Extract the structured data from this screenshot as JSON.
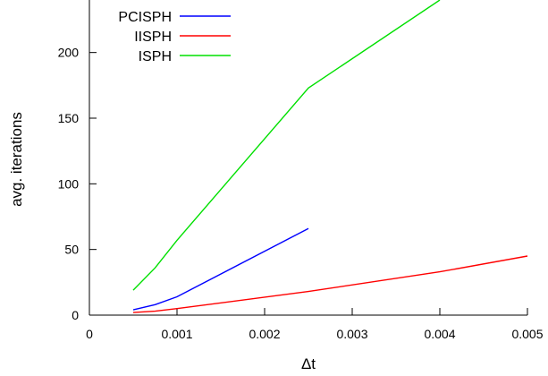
{
  "chart_data": {
    "type": "line",
    "xlabel": "Δt",
    "ylabel": "avg. iterations",
    "xlim": [
      0,
      0.005
    ],
    "ylim": [
      0,
      240
    ],
    "x_ticks": [
      "0",
      "0.001",
      "0.002",
      "0.003",
      "0.004",
      "0.005"
    ],
    "y_ticks": [
      "0",
      "50",
      "100",
      "150",
      "200"
    ],
    "grid": false,
    "legend_position": "top-left",
    "series": [
      {
        "name": "PCISPH",
        "color": "#0000ff",
        "points": [
          [
            0.0005,
            4
          ],
          [
            0.00075,
            8
          ],
          [
            0.001,
            14
          ],
          [
            0.0025,
            66
          ]
        ]
      },
      {
        "name": "IISPH",
        "color": "#ff0000",
        "points": [
          [
            0.0005,
            2
          ],
          [
            0.00075,
            3
          ],
          [
            0.001,
            5
          ],
          [
            0.0025,
            18
          ],
          [
            0.004,
            33
          ],
          [
            0.005,
            45
          ]
        ]
      },
      {
        "name": "ISPH",
        "color": "#00e000",
        "points": [
          [
            0.0005,
            19
          ],
          [
            0.00075,
            36
          ],
          [
            0.001,
            57
          ],
          [
            0.0025,
            173
          ],
          [
            0.004,
            240
          ]
        ]
      }
    ]
  }
}
